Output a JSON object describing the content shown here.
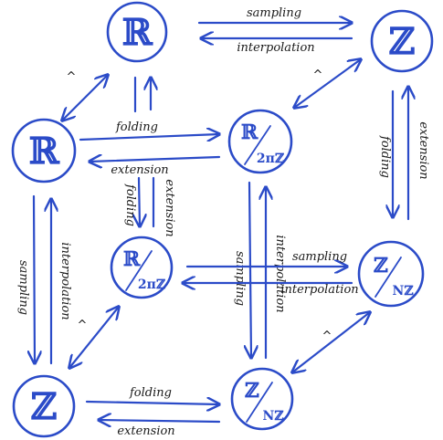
{
  "nodes": {
    "back_r": "ℝ",
    "back_z": "ℤ",
    "front_r": "ℝ",
    "front_z": "ℤ",
    "back_circle": {
      "num": "ℝ",
      "den": "2πℤ"
    },
    "front_circle": {
      "num": "ℝ",
      "den": "2πℤ"
    },
    "back_cyclic": {
      "num": "ℤ",
      "den": "Nℤ"
    },
    "front_cyclic": {
      "num": "ℤ",
      "den": "Nℤ"
    }
  },
  "edges": {
    "sampling": "sampling",
    "interpolation": "interpolation",
    "folding": "folding",
    "extension": "extension"
  },
  "hat": "^"
}
